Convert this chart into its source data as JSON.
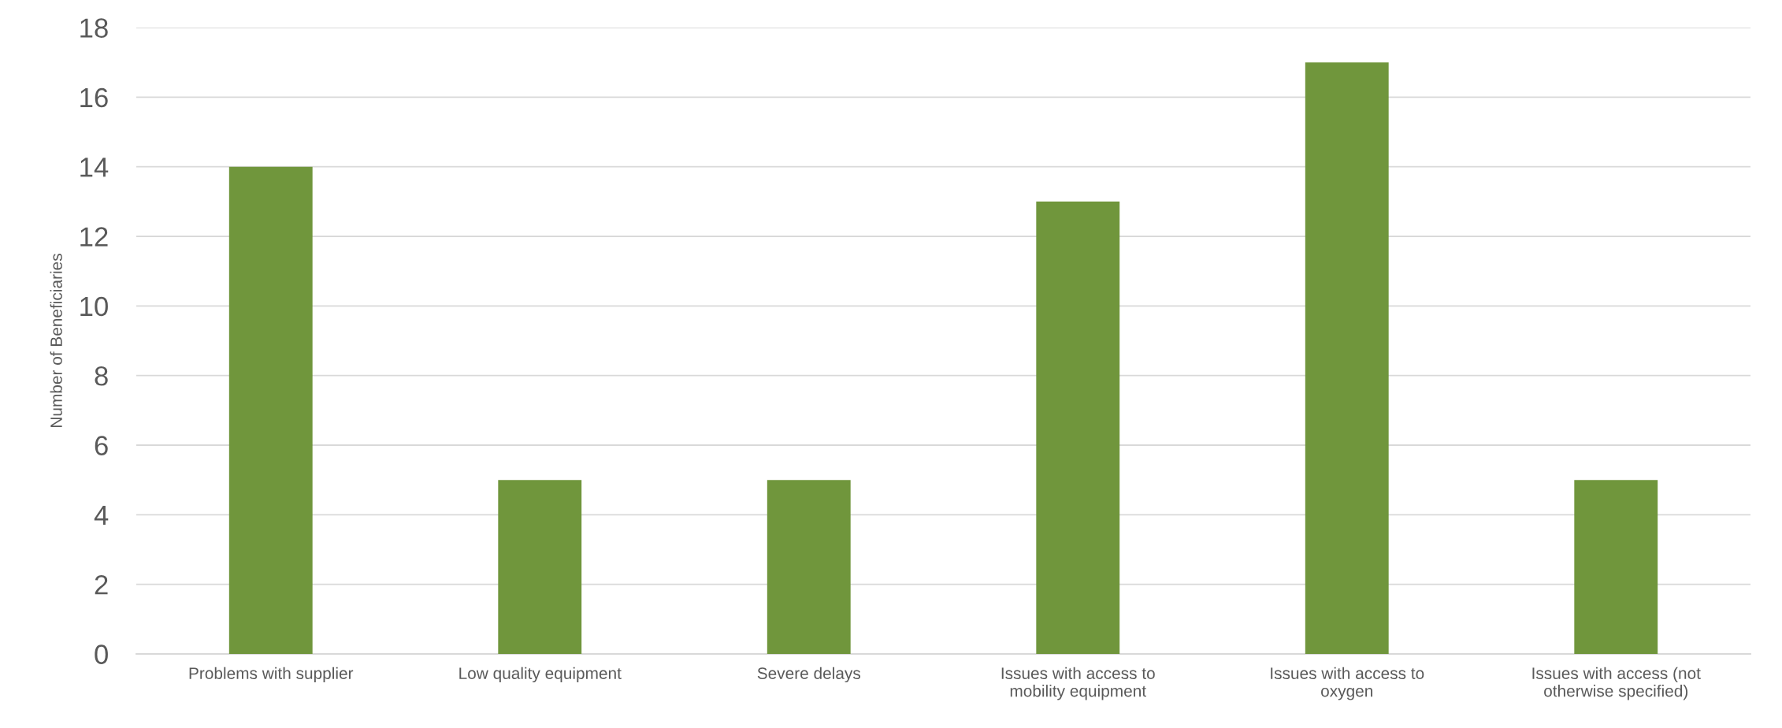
{
  "chart_data": {
    "type": "bar",
    "ylabel": "Number of Beneficiaries",
    "categories": [
      "Problems with supplier",
      "Low quality equipment",
      "Severe delays",
      "Issues with access to\nmobility equipment",
      "Issues with access to\noxygen",
      "Issues with access (not\notherwise specified)"
    ],
    "values": [
      14,
      5,
      5,
      13,
      17,
      5
    ],
    "color": "#70963c",
    "ylim": [
      0,
      18
    ],
    "yticks": [
      0,
      2,
      4,
      6,
      8,
      10,
      12,
      14,
      16,
      18
    ],
    "grid": "y"
  }
}
